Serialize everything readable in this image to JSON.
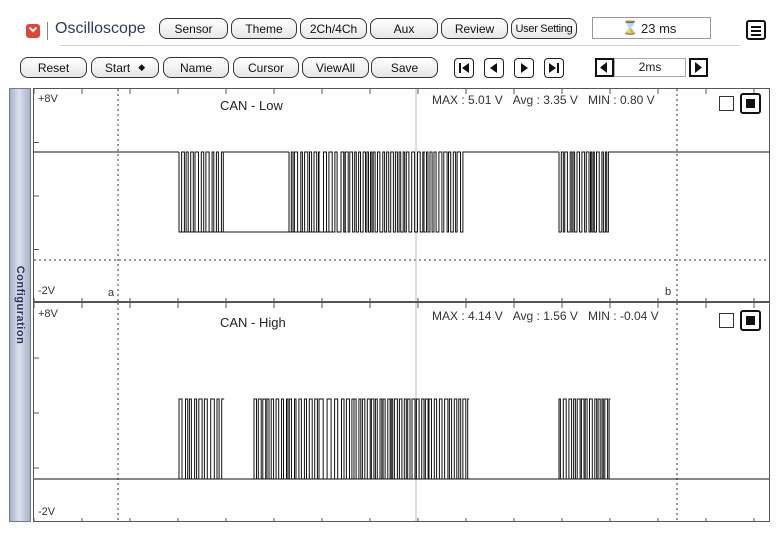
{
  "app": {
    "title": "Oscilloscope",
    "accent": "#e0453a"
  },
  "toolbar1": {
    "sensor": "Sensor",
    "theme": "Theme",
    "channels": "2Ch/4Ch",
    "aux": "Aux",
    "review": "Review",
    "user_setting": "User Setting",
    "timing": "23 ms"
  },
  "toolbar2": {
    "reset": "Reset",
    "start": "Start",
    "start_arrows": "◆",
    "name": "Name",
    "cursor": "Cursor",
    "viewall": "ViewAll",
    "save": "Save",
    "timebase": "2ms"
  },
  "sidebar": {
    "label": "Configuration"
  },
  "channels": [
    {
      "name": "CAN - Low",
      "ymax": "+8V",
      "ymin": "-2V",
      "max_label": "MAX",
      "max": "5.01 V",
      "avg_label": "Avg",
      "avg": "3.35 V",
      "min_label": "MIN",
      "min": "0.80 V",
      "cursor_a": "a",
      "cursor_b": "b"
    },
    {
      "name": "CAN - High",
      "ymax": "+8V",
      "ymin": "-2V",
      "max_label": "MAX",
      "max": "4.14 V",
      "avg_label": "Avg",
      "avg": "1.56 V",
      "min_label": "MIN",
      "min": "-0.04 V"
    }
  ]
}
